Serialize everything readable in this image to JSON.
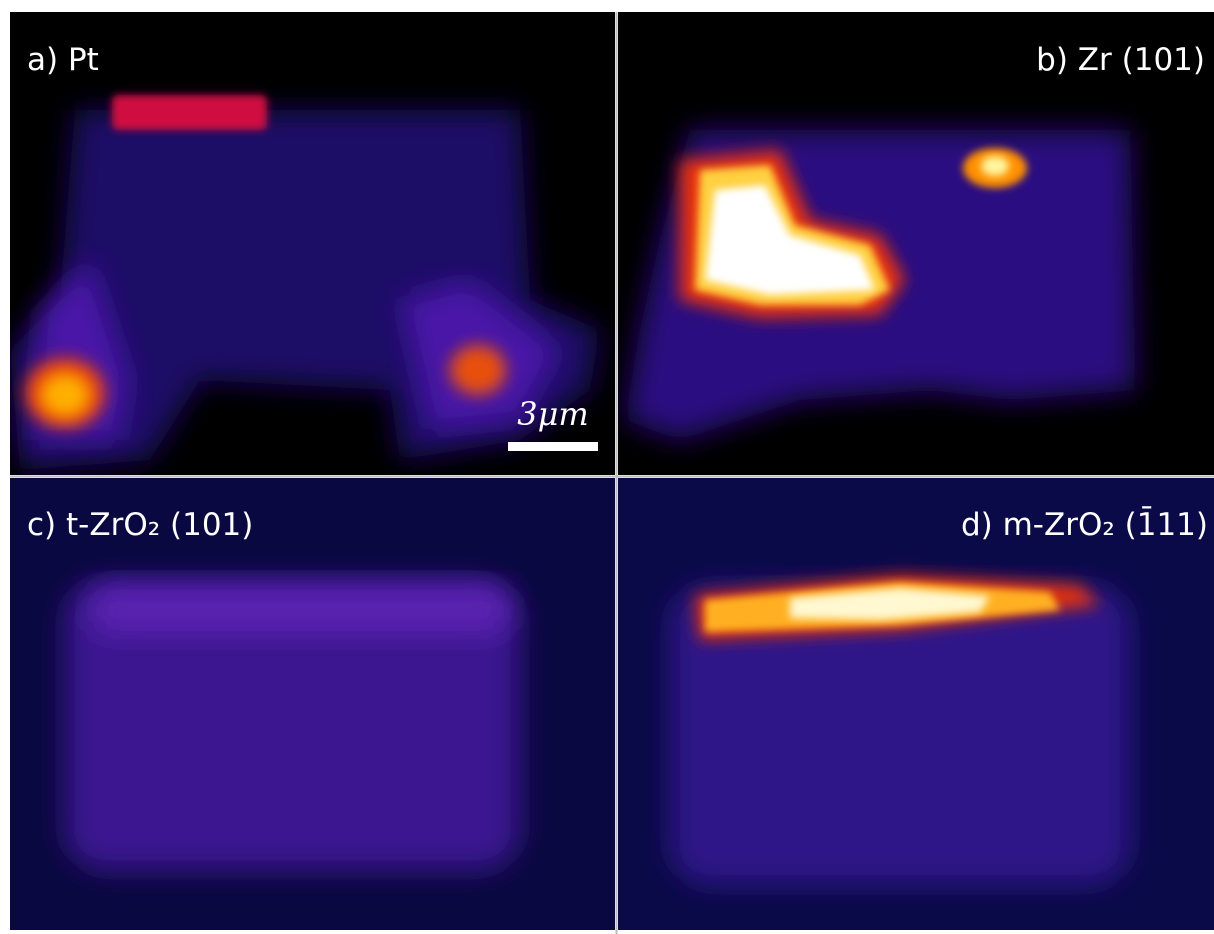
{
  "panels": [
    {
      "label": "a) Pt",
      "scale_bar": "3μm"
    },
    {
      "label": "b) Zr (101)"
    },
    {
      "label": "c) t-ZrO₂ (101)"
    },
    {
      "label": "d) m-ZrO₂ (1̄11)"
    }
  ]
}
